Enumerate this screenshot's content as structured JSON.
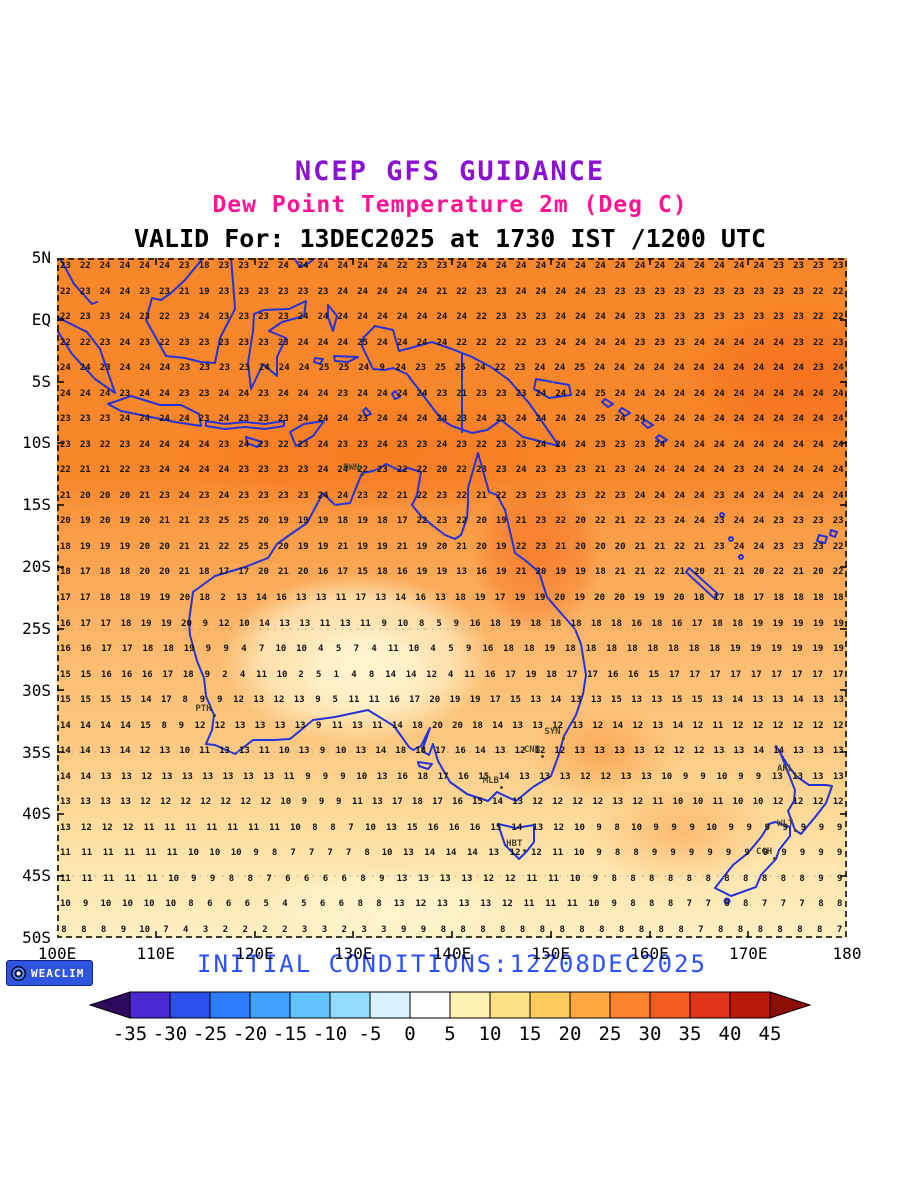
{
  "titles": {
    "line1": "NCEP GFS GUIDANCE",
    "line2": "Dew Point Temperature 2m (Deg C)",
    "line3": "VALID For: 13DEC2025 at 1730 IST /1200 UTC"
  },
  "footer": {
    "initial_conditions": "INITIAL CONDITIONS:12Z08DEC2025"
  },
  "logo": {
    "text": "WEACLIM"
  },
  "axes": {
    "lat_labels": [
      "5N",
      "EQ",
      "5S",
      "10S",
      "15S",
      "20S",
      "25S",
      "30S",
      "35S",
      "40S",
      "45S",
      "50S"
    ],
    "lon_labels": [
      "100E",
      "110E",
      "120E",
      "130E",
      "140E",
      "150E",
      "160E",
      "170E",
      "180"
    ]
  },
  "map": {
    "stations": [
      {
        "code": "DWN",
        "lon": 130.84,
        "lat": -12.46
      },
      {
        "code": "PTH",
        "lon": 115.86,
        "lat": -31.95
      },
      {
        "code": "SYN",
        "lon": 151.2,
        "lat": -33.86
      },
      {
        "code": "CNB",
        "lon": 149.13,
        "lat": -35.28
      },
      {
        "code": "MLB",
        "lon": 144.96,
        "lat": -37.81
      },
      {
        "code": "HBT",
        "lon": 147.33,
        "lat": -42.88
      },
      {
        "code": "AKL",
        "lon": 174.76,
        "lat": -36.85
      },
      {
        "code": "WLT",
        "lon": 174.78,
        "lat": -41.28
      },
      {
        "code": "CCH",
        "lon": 172.63,
        "lat": -43.53
      }
    ],
    "grid_rows": [
      "23 22 24 24 24 24 23 18 23 23 22 24 24 24 24 24 24 22 23 23 24 24 24 24 24 24 24 24 24 24 24 24 24 24 24 24 23 23 23 23",
      "22 23 24 24 23 23 21 19 23 23 23 23 23 23 24 24 24 24 24 21 22 23 23 24 24 24 24 23 23 23 23 23 23 23 23 23 23 23 22 22",
      "22 23 23 24 23 22 23 24 23 23 23 23 24 24 24 24 24 24 24 24 24 22 23 23 23 24 24 24 24 23 23 23 23 23 23 23 23 23 22 22",
      "22 22 23 24 23 22 23 23 23 23 23 23 24 24 24 25 24 24 24 24 22 22 22 22 23 24 24 24 24 23 23 23 24 24 24 24 24 23 22 23",
      "24 24 23 24 24 24 23 23 23 23 24 24 24 25 25 24 9 24 23 25 25 24 22 23 24 24 25 24 24 24 24 24 24 24 24 24 24 24 23 24",
      "24 24 24 23 24 24 23 23 24 24 23 24 24 24 23 24 24 24 24 23 21 23 23 23 24 24 24 25 24 24 24 24 24 24 24 24 24 24 24 24",
      "23 23 23 24 24 24 24 23 24 23 23 23 24 24 24 23 24 24 24 24 23 24 23 24 24 24 24 25 24 24 24 24 24 24 24 24 24 24 24 24",
      "23 23 22 23 24 24 24 24 23 24 23 22 23 24 23 23 24 23 23 24 23 22 23 23 24 24 24 23 23 23 24 24 24 24 24 24 24 24 24 24",
      "22 21 21 22 23 24 24 24 24 23 23 23 23 24 24 22 23 22 22 20 22 23 23 24 23 23 23 21 23 24 24 24 24 24 23 24 24 24 24 24",
      "21 20 20 20 21 23 24 23 24 23 23 23 23 24 24 23 22 21 22 23 22 21 22 23 23 23 23 22 23 24 24 24 24 23 24 24 24 24 24 24",
      "20 19 20 19 20 21 21 23 25 25 20 19 19 19 18 19 18 17 22 23 22 20 19 21 23 22 20 22 21 22 23 24 24 23 24 24 23 23 23 23",
      "18 19 19 19 20 20 21 21 22 25 25 20 19 19 21 19 19 21 19 20 21 20 19 22 23 21 20 20 20 21 21 22 21 23 24 24 23 23 23 22",
      "18 17 18 18 20 20 21 18 17 17 20 21 20 16 17 15 18 16 19 19 13 16 19 21 20 19 19 18 21 21 22 21 20 21 21 20 22 21 20 22",
      "17 17 18 18 19 19 20 18 2 13 14 16 13 13 11 17 13 14 16 13 18 19 17 19 19 20 19 20 20 19 19 20 18 17 18 17 18 18 18 18",
      "16 17 17 18 19 19 20 9 12 10 14 13 13 11 13 11 9 10 8 5 9 16 18 19 18 18 18 18 18 16 18 16 17 18 18 19 19 19 19 19",
      "16 16 17 17 18 18 19 9 9 4 7 10 10 4 5 7 4 11 10 4 5 9 16 18 18 19 18 18 18 18 18 18 18 18 19 19 19 19 19 19",
      "15 15 16 16 16 17 18 9 2 4 11 10 2 5 1 4 8 14 14 12 4 11 16 17 19 18 17 17 16 16 15 17 17 17 17 17 17 17 17 17",
      "15 15 15 15 14 17 8 9 9 12 13 12 13 9 5 11 11 16 17 20 19 19 17 15 13 14 13 13 15 13 13 15 15 13 14 13 13 14 13 13",
      "14 14 14 14 15 8 9 12 12 13 13 13 13 9 11 13 11 14 18 20 20 18 14 13 13 12 13 12 14 12 13 14 12 11 12 12 12 12 12 12",
      "14 14 13 14 12 13 10 11 13 13 11 10 13 9 10 13 14 18 18 17 16 14 13 12 12 12 13 13 13 13 12 12 12 13 13 14 14 13 13 13",
      "14 14 13 13 12 13 13 13 13 13 13 11 9 9 9 10 13 16 18 17 16 15 14 13 13 13 12 12 13 13 10 9 9 10 9 9 13 13 13 13",
      "13 13 13 13 12 12 12 12 12 12 12 10 9 9 9 11 13 17 18 17 16 15 14 13 12 12 12 12 13 12 11 10 10 11 10 10 12 12 12 12",
      "13 12 12 12 11 11 11 11 11 11 11 10 8 8 7 10 13 15 16 16 16 15 14 13 12 10 9 8 10 9 9 9 10 9 9 9 9 9 9 9",
      "11 11 11 11 11 11 10 10 10 9 8 7 7 7 7 8 10 13 14 14 14 13 12 12 11 10 9 8 8 9 9 9 9 9 9 9 9 9 9 9",
      "11 11 11 11 11 10 9 9 8 8 7 6 6 6 6 8 9 13 13 13 13 12 12 11 11 10 9 8 8 8 8 8 8 8 8 8 8 8 9 9",
      "10 9 10 10 10 10 8 6 6 6 5 4 5 6 6 8 8 13 12 13 13 13 12 11 11 11 10 9 8 8 8 7 7 8 8 7 7 7 8 8",
      "8 8 8 9 10 7 4 3 2 2 2 2 3 3 2 3 3 9 9 8 8 8 8 8 8 8 8 8 8 8 8 8 7 8 8 8 8 8 8 7"
    ]
  },
  "colorbar": {
    "tick_labels": [
      "-35",
      "-30",
      "-25",
      "-20",
      "-15",
      "-10",
      "-5",
      "0",
      "5",
      "10",
      "15",
      "20",
      "25",
      "30",
      "35",
      "40",
      "45"
    ],
    "colors": [
      "#2e0a5e",
      "#4a2ad0",
      "#2b50ee",
      "#2e7bff",
      "#41a1ff",
      "#63c3ff",
      "#93dcff",
      "#d8f2ff",
      "#ffffff",
      "#fff3b4",
      "#ffe288",
      "#ffcb5e",
      "#ffa843",
      "#fb832d",
      "#f35b20",
      "#e03418",
      "#bb180c",
      "#8c0d06"
    ]
  },
  "palette": {
    "title1": "#8a12d0",
    "title2": "#ff1493",
    "title3": "#000000",
    "footer": "#2d50ff",
    "coastline": "#2433d9",
    "grid_values": "#141414",
    "station": "#45452c"
  }
}
